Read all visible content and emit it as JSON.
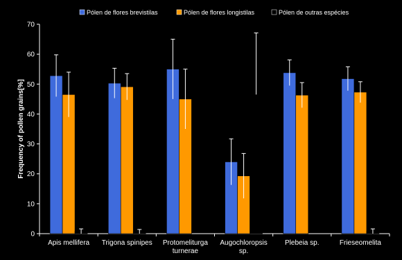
{
  "chart_data": {
    "type": "bar",
    "title": "",
    "xlabel": "",
    "ylabel": "Frequency of pollen grains[%]",
    "ylim": [
      0,
      70
    ],
    "yticks": [
      0,
      10,
      20,
      30,
      40,
      50,
      60,
      70
    ],
    "grid": false,
    "legend_position": "top",
    "categories": [
      "Apis mellifera",
      "Trigona spinipes",
      "Protomeliturga turnerae",
      "Augochloropsis sp.",
      "Plebeia sp.",
      "Frieseomelita"
    ],
    "category_lines": [
      [
        "Apis mellifera"
      ],
      [
        "Trigona spinipes"
      ],
      [
        "Protomeliturga",
        "turnerae"
      ],
      [
        "Augochloropsis",
        "sp."
      ],
      [
        "Plebeia sp."
      ],
      [
        "Frieseomelita"
      ]
    ],
    "series": [
      {
        "name": "Pólen de flores brevistilas",
        "color": "#3f6bdc",
        "values": [
          52.8,
          50.3,
          55.0,
          24.0,
          53.8,
          51.8
        ],
        "errors": [
          7.0,
          5.0,
          10.0,
          7.7,
          4.3,
          4.0
        ]
      },
      {
        "name": "Pólen de flores longistilas",
        "color": "#ff9900",
        "values": [
          46.5,
          49.1,
          45.0,
          19.3,
          46.3,
          47.3
        ],
        "errors": [
          7.5,
          4.4,
          10.0,
          7.5,
          4.2,
          3.5
        ]
      },
      {
        "name": "Pólen de outras espécies",
        "color": "#000000",
        "values": [
          0.8,
          0.6,
          0.0,
          56.8,
          0.0,
          0.8
        ],
        "errors": [
          0.8,
          0.8,
          0.0,
          10.3,
          0.0,
          0.8
        ]
      }
    ]
  }
}
